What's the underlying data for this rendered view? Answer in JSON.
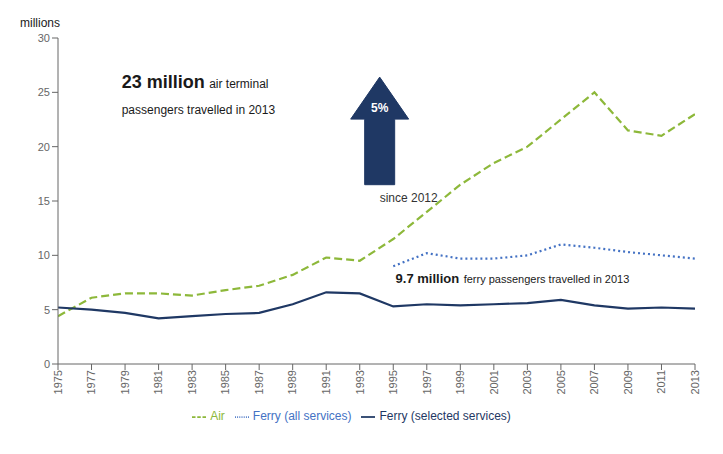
{
  "chart_data": {
    "type": "line",
    "ylabel": "millions",
    "x": [
      1975,
      1977,
      1979,
      1981,
      1983,
      1985,
      1987,
      1989,
      1991,
      1993,
      1995,
      1997,
      1999,
      2001,
      2003,
      2005,
      2007,
      2009,
      2011,
      2013
    ],
    "series": [
      {
        "name": "Air",
        "color": "#8DB83A",
        "line_style": "dashed",
        "values": [
          4.4,
          6.1,
          6.5,
          6.5,
          6.3,
          6.8,
          7.2,
          8.2,
          9.8,
          9.5,
          11.5,
          14.0,
          16.5,
          18.5,
          20.0,
          22.5,
          25.0,
          21.5,
          21.0,
          23.0
        ]
      },
      {
        "name": "Ferry (selected services)",
        "color": "#1F3864",
        "line_style": "solid",
        "values": [
          5.2,
          5.0,
          4.7,
          4.2,
          4.4,
          4.6,
          4.7,
          5.5,
          6.6,
          6.5,
          5.3,
          5.5,
          5.4,
          5.5,
          5.6,
          5.9,
          5.4,
          5.1,
          5.2,
          5.1
        ]
      },
      {
        "name": "Ferry (all services)",
        "color": "#4472C4",
        "line_style": "dotted",
        "values": [
          null,
          null,
          null,
          null,
          null,
          null,
          null,
          null,
          null,
          null,
          9.0,
          10.2,
          9.7,
          9.7,
          10.0,
          11.0,
          10.7,
          10.3,
          10.0,
          9.7
        ]
      }
    ],
    "xlim": [
      1975,
      2013
    ],
    "xticks": [
      1975,
      1977,
      1979,
      1981,
      1983,
      1985,
      1987,
      1989,
      1991,
      1993,
      1995,
      1997,
      1999,
      2001,
      2003,
      2005,
      2007,
      2009,
      2011,
      2013
    ],
    "ylim": [
      0,
      30
    ],
    "yticks": [
      0,
      5,
      10,
      15,
      20,
      25,
      30
    ],
    "grid": false,
    "legend": "bottom",
    "annotations": [
      "23 million",
      "air terminal",
      "passengers travelled in 2013",
      "9.7 million",
      "ferry passengers travelled in 2013",
      "5%",
      "since 2012"
    ]
  }
}
